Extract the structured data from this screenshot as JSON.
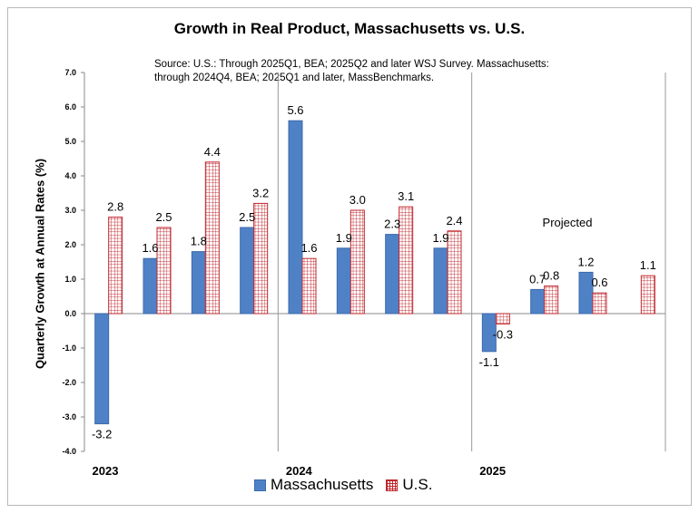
{
  "chart_data": {
    "type": "bar",
    "title": "Growth in Real Product, Massachusetts vs. U.S.",
    "subtitle_lines": [
      "Source: U.S.: Through 2025Q1, BEA; 2025Q2 and later WSJ Survey. Massachusetts:",
      "through 2024Q4, BEA; 2025Q1 and later, MassBenchmarks."
    ],
    "ylabel": "Quarterly Growth at Annual Rates (%)",
    "xlabel": "",
    "ylim": [
      -4.0,
      7.0
    ],
    "yticks": [
      "-4.0",
      "-3.0",
      "-2.0",
      "-1.0",
      "0.0",
      "1.0",
      "2.0",
      "3.0",
      "4.0",
      "5.0",
      "6.0",
      "7.0"
    ],
    "year_labels": [
      "2023",
      "2024",
      "2025"
    ],
    "annotation": "Projected",
    "legend_position": "bottom",
    "series": [
      {
        "name": "Massachusetts",
        "color": "#4f81c7",
        "values": [
          -3.2,
          1.6,
          1.8,
          2.5,
          5.6,
          1.9,
          2.3,
          1.9,
          -1.1,
          0.7,
          1.2,
          null
        ],
        "labels": [
          "-3.2",
          "1.6",
          "1.8",
          "2.5",
          "5.6",
          "1.9",
          "2.3",
          "1.9",
          "-1.1",
          "0.7",
          "1.2",
          ""
        ]
      },
      {
        "name": "U.S.",
        "color": "#c0272d",
        "values": [
          2.8,
          2.5,
          4.4,
          3.2,
          1.6,
          3.0,
          3.1,
          2.4,
          -0.3,
          0.8,
          0.6,
          1.1
        ],
        "labels": [
          "2.8",
          "2.5",
          "4.4",
          "3.2",
          "1.6",
          "3.0",
          "3.1",
          "2.4",
          "-0.3",
          "0.8",
          "0.6",
          "1.1"
        ]
      }
    ]
  }
}
